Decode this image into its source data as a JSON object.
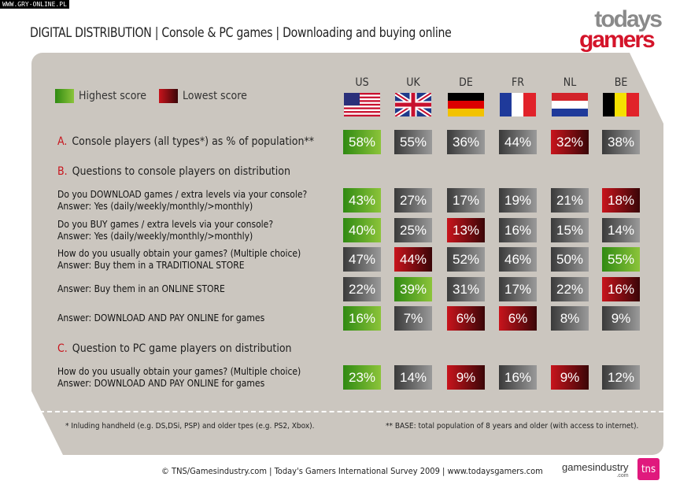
{
  "watermark": "WWW.GRY-ONLINE.PL",
  "title": "DIGITAL DISTRIBUTION | Console & PC games | Downloading and buying online",
  "logo": {
    "line1": "todays",
    "line2": "gamers"
  },
  "legend": {
    "highest": "Highest score",
    "lowest": "Lowest score"
  },
  "countries": [
    "US",
    "UK",
    "DE",
    "FR",
    "NL",
    "BE"
  ],
  "sections": {
    "a": {
      "letter": "A.",
      "label": "Console players (all types*) as % of population**"
    },
    "b": {
      "letter": "B.",
      "label": "Questions to console players on distribution"
    },
    "c": {
      "letter": "C.",
      "label": "Question to PC game players on distribution"
    }
  },
  "rows": [
    {
      "q1": "",
      "q2": "",
      "values": [
        "58%",
        "55%",
        "36%",
        "44%",
        "32%",
        "38%"
      ],
      "colors": [
        "green",
        "gray",
        "gray",
        "gray",
        "red",
        "gray"
      ]
    },
    {
      "q1": "Do you DOWNLOAD games / extra levels via your console?",
      "q2": "Answer: Yes (daily/weekly/monthly/>monthly)",
      "values": [
        "43%",
        "27%",
        "17%",
        "19%",
        "21%",
        "18%"
      ],
      "colors": [
        "green",
        "gray",
        "gray",
        "gray",
        "gray",
        "red"
      ]
    },
    {
      "q1": "Do you BUY games / extra levels via your console?",
      "q2": "Answer: Yes (daily/weekly/monthly/>monthly)",
      "values": [
        "40%",
        "25%",
        "13%",
        "16%",
        "15%",
        "14%"
      ],
      "colors": [
        "green",
        "gray",
        "red",
        "gray",
        "gray",
        "gray"
      ]
    },
    {
      "q1": "How do you usually obtain your games? (Multiple choice)",
      "q2": "Answer: Buy them in a TRADITIONAL STORE",
      "values": [
        "47%",
        "44%",
        "52%",
        "46%",
        "50%",
        "55%"
      ],
      "colors": [
        "gray",
        "red",
        "gray",
        "gray",
        "gray",
        "green"
      ]
    },
    {
      "q1": "",
      "q2": "Answer: Buy them in an ONLINE STORE",
      "values": [
        "22%",
        "39%",
        "31%",
        "17%",
        "22%",
        "16%"
      ],
      "colors": [
        "gray",
        "green",
        "gray",
        "gray",
        "gray",
        "red"
      ]
    },
    {
      "q1": "",
      "q2": "Answer: DOWNLOAD AND PAY ONLINE for games",
      "values": [
        "16%",
        "7%",
        "6%",
        "6%",
        "8%",
        "9%"
      ],
      "colors": [
        "green",
        "gray",
        "red",
        "red",
        "gray",
        "gray"
      ]
    },
    {
      "q1": "How do you usually obtain your games? (Multiple choice)",
      "q2": "Answer: DOWNLOAD AND PAY ONLINE for games",
      "values": [
        "23%",
        "14%",
        "9%",
        "16%",
        "9%",
        "12%"
      ],
      "colors": [
        "green",
        "gray",
        "red",
        "gray",
        "red",
        "gray"
      ]
    }
  ],
  "footnotes": {
    "left": "* Inluding handheld (e.g. DS,DSi, PSP) and older tpes (e.g. PS2, Xbox).",
    "right": "** BASE: total population of 8 years and older (with access to internet)."
  },
  "credits": "© TNS/Gamesindustry.com | Today's Gamers International Survey 2009 | www.todaysgamers.com",
  "partners": {
    "gi": "gamesindustry",
    "gi_sub": ".com",
    "tns": "tns"
  }
}
